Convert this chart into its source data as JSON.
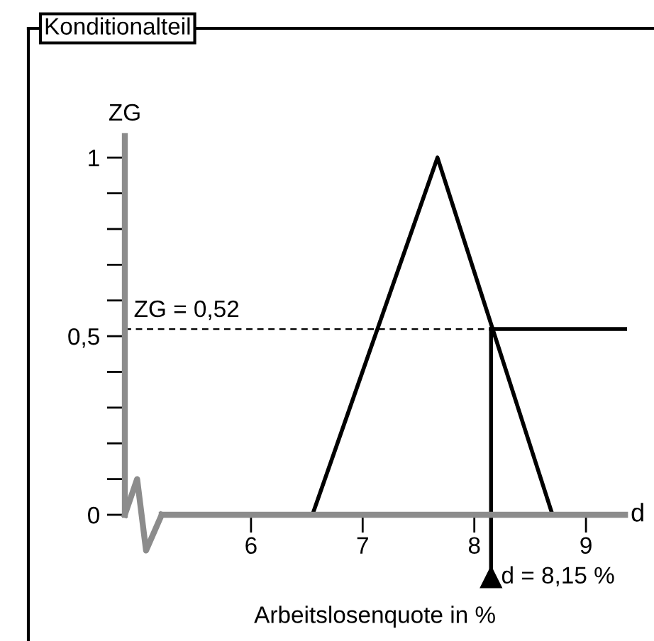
{
  "chart_data": {
    "type": "line",
    "title": "Konditionalteil",
    "xlabel": "Arbeitslosenquote in %",
    "ylabel": "ZG",
    "annotations": [
      "d",
      {
        "text": "ZG = 0,52",
        "x": 4.87,
        "y": 0.52
      }
    ],
    "series": [
      {
        "x": [
          6.55,
          7.67,
          8.7
        ],
        "values": [
          0,
          1,
          0
        ],
        "color": "#000000"
      },
      {
        "x": [
          8.15,
          9.35
        ],
        "values": [
          0.52,
          0.52
        ],
        "color": "#000000"
      },
      {
        "x": [
          4.87,
          8.15
        ],
        "values": [
          0.52,
          0.52
        ],
        "color": "#000000",
        "line_style": "dashed"
      }
    ],
    "xlim": [
      4.87,
      9.35
    ],
    "ylim": [
      0,
      1.06
    ],
    "xticks": [
      6,
      7,
      8,
      9
    ],
    "yticks": [
      {
        "value": 0,
        "label": "0"
      },
      {
        "value": 0.1,
        "label": null
      },
      {
        "value": 0.2,
        "label": null
      },
      {
        "value": 0.3,
        "label": null
      },
      {
        "value": 0.4,
        "label": null
      },
      {
        "value": 0.5,
        "label": "0,5"
      },
      {
        "value": 0.6,
        "label": null
      },
      {
        "value": 0.7,
        "label": null
      },
      {
        "value": 0.8,
        "label": null
      },
      {
        "value": 0.9,
        "label": null
      },
      {
        "value": 1,
        "label": "1"
      }
    ],
    "ref_lines": [
      {
        "axis": "x",
        "value": 8.15,
        "label": "d = 8,15 %",
        "line_style": "solid",
        "color": "#000000"
      }
    ],
    "grid": false,
    "legend": false
  }
}
